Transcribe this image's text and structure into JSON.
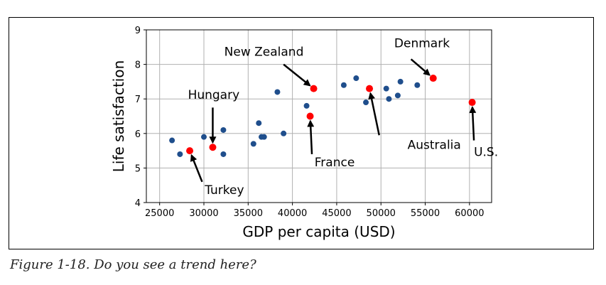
{
  "caption": "Figure 1-18. Do you see a trend here?",
  "chart_data": {
    "type": "scatter",
    "xlabel": "GDP per capita (USD)",
    "ylabel": "Life satisfaction",
    "xlim": [
      23500,
      62500
    ],
    "ylim": [
      4,
      9
    ],
    "xticks": [
      25000,
      30000,
      35000,
      40000,
      45000,
      50000,
      55000,
      60000
    ],
    "yticks": [
      4,
      5,
      6,
      7,
      8,
      9
    ],
    "grid": true,
    "colors": {
      "points": "#1f4e8c",
      "highlight": "#ff0000"
    },
    "points": [
      {
        "x": 26400,
        "y": 5.8
      },
      {
        "x": 27300,
        "y": 5.4
      },
      {
        "x": 30000,
        "y": 5.9
      },
      {
        "x": 32200,
        "y": 6.1
      },
      {
        "x": 32200,
        "y": 5.4
      },
      {
        "x": 35600,
        "y": 5.7
      },
      {
        "x": 36200,
        "y": 6.3
      },
      {
        "x": 36500,
        "y": 5.9
      },
      {
        "x": 36800,
        "y": 5.9
      },
      {
        "x": 38300,
        "y": 7.2
      },
      {
        "x": 39000,
        "y": 6.0
      },
      {
        "x": 41600,
        "y": 6.8
      },
      {
        "x": 45800,
        "y": 7.4
      },
      {
        "x": 47200,
        "y": 7.6
      },
      {
        "x": 48300,
        "y": 6.9
      },
      {
        "x": 50600,
        "y": 7.3
      },
      {
        "x": 50900,
        "y": 7.0
      },
      {
        "x": 51900,
        "y": 7.1
      },
      {
        "x": 52200,
        "y": 7.5
      },
      {
        "x": 54100,
        "y": 7.4
      }
    ],
    "highlighted": [
      {
        "label": "Hungary",
        "x": 31000,
        "y": 5.6,
        "text_x": 28200,
        "text_y": 7.0,
        "arrow_x": 31000,
        "arrow_y": 6.75
      },
      {
        "label": "Turkey",
        "x": 28400,
        "y": 5.5,
        "text_x": 30100,
        "text_y": 4.25,
        "arrow_x": 29800,
        "arrow_y": 4.6
      },
      {
        "label": "New Zealand",
        "x": 42400,
        "y": 7.3,
        "text_x": 32300,
        "text_y": 8.25,
        "arrow_x": 39000,
        "arrow_y": 8.0
      },
      {
        "label": "France",
        "x": 42000,
        "y": 6.5,
        "text_x": 42500,
        "text_y": 5.05,
        "arrow_x": 42200,
        "arrow_y": 5.4
      },
      {
        "label": "Denmark",
        "x": 55900,
        "y": 7.6,
        "text_x": 51500,
        "text_y": 8.5,
        "arrow_x": 53400,
        "arrow_y": 8.15
      },
      {
        "label": "Australia",
        "x": 48700,
        "y": 7.3,
        "text_x": 53000,
        "text_y": 5.55,
        "arrow_x": 49800,
        "arrow_y": 5.95
      },
      {
        "label": "U.S.",
        "x": 60300,
        "y": 6.9,
        "text_x": 60500,
        "text_y": 5.35,
        "arrow_x": 60500,
        "arrow_y": 5.8
      }
    ]
  }
}
